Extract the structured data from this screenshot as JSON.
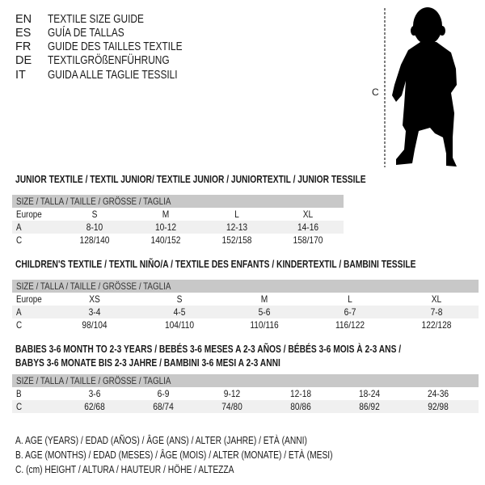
{
  "languages": [
    {
      "code": "EN",
      "title": "TEXTILE SIZE GUIDE"
    },
    {
      "code": "ES",
      "title": "GUÍA DE TALLAS"
    },
    {
      "code": "FR",
      "title": "GUIDE DES TAILLES TEXTILE"
    },
    {
      "code": "DE",
      "title": "TEXTILGRÖßENFÜHRUNG"
    },
    {
      "code": "IT",
      "title": "GUIDA ALLE TAGLIE TESSILI"
    }
  ],
  "figure": {
    "label": "C",
    "icon": "child-silhouette"
  },
  "junior": {
    "heading": "JUNIOR TEXTILE / TEXTIL JUNIOR/ TEXTILE JUNIOR / JUNIORTEXTIL / JUNIOR TESSILE",
    "header": "SIZE / TALLA / TAILLE / GRÖSSE / TAGLIA",
    "rows": [
      {
        "label": "Europe",
        "values": [
          "S",
          "M",
          "L",
          "XL"
        ]
      },
      {
        "label": "A",
        "values": [
          "8-10",
          "10-12",
          "12-13",
          "14-16"
        ]
      },
      {
        "label": "C",
        "values": [
          "128/140",
          "140/152",
          "152/158",
          "158/170"
        ]
      }
    ]
  },
  "children": {
    "heading": "CHILDREN'S TEXTILE / TEXTIL NIÑO/A / TEXTILE DES ENFANTS / KINDERTEXTIL / BAMBINI TESSILE",
    "header": "SIZE / TALLA / TAILLE / GRÖSSE / TAGLIA",
    "rows": [
      {
        "label": "Europe",
        "values": [
          "XS",
          "S",
          "M",
          "L",
          "XL"
        ]
      },
      {
        "label": "A",
        "values": [
          "3-4",
          "4-5",
          "5-6",
          "6-7",
          "7-8"
        ]
      },
      {
        "label": "C",
        "values": [
          "98/104",
          "104/110",
          "110/116",
          "116/122",
          "122/128"
        ]
      }
    ]
  },
  "babies": {
    "heading_line1": "BABIES 3-6 MONTH TO 2-3 YEARS / BEBÉS 3-6 MESES A 2-3 AÑOS / BÉBÉS 3-6 MOIS À 2-3 ANS /",
    "heading_line2": "BABYS 3-6 MONATE BIS 2-3 JAHRE / BAMBINI 3-6 MESI A 2-3 ANNI",
    "header": "SIZE / TALLA / TAILLE / GRÖSSE / TAGLIA",
    "rows": [
      {
        "label": "B",
        "values": [
          "3-6",
          "6-9",
          "9-12",
          "12-18",
          "18-24",
          "24-36"
        ]
      },
      {
        "label": "C",
        "values": [
          "62/68",
          "68/74",
          "74/80",
          "80/86",
          "86/92",
          "92/98"
        ]
      }
    ]
  },
  "legend": [
    "A. AGE (YEARS) / EDAD (AÑOS) / ÂGE (ANS) / ALTER (JAHRE) / ETÀ (ANNI)",
    "B. AGE (MONTHS) / EDAD (MESES) / ÂGE (MOIS) / ALTER (MONATE) / ETÀ (MESI)",
    "C. (cm) HEIGHT / ALTURA / HAUTEUR / HÖHE / ALTEZZA"
  ],
  "colors": {
    "header_bg": "#c8c8c8",
    "shade_bg": "#f0f0f0"
  }
}
